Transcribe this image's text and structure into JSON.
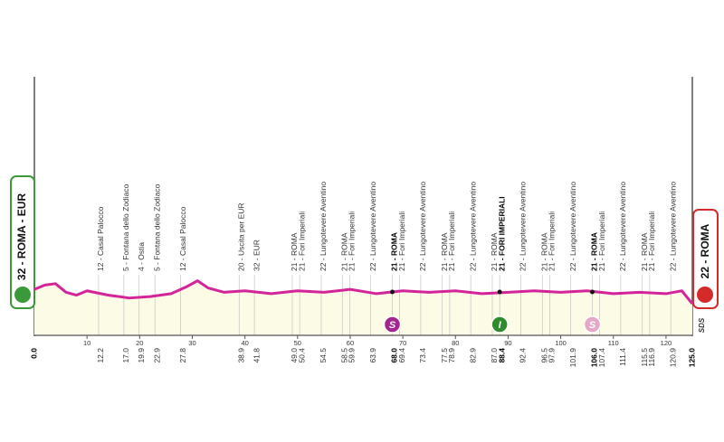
{
  "chart_data": {
    "type": "profile",
    "start_label": "32 - ROMA - EUR",
    "finish_label": "22 - ROMA",
    "logo": "SDS",
    "xlim": [
      0,
      125
    ],
    "ylim": [
      0,
      180
    ],
    "xticks": [
      10,
      20,
      30,
      40,
      50,
      60,
      70,
      80,
      90,
      100,
      110,
      120
    ],
    "start_km": {
      "value": 0,
      "label": "0.0"
    },
    "finish_km": {
      "value": 125,
      "label": "125.0"
    },
    "waypoints": [
      {
        "km": 12.2,
        "label": "12 - Casal Palocco"
      },
      {
        "km": {
          "value": 17,
          "label": "17.0"
        },
        "label": "5 - Fontana dello Zodiaco"
      },
      {
        "km": 19.9,
        "label": "4 - Ostia"
      },
      {
        "km": 22.9,
        "label": "5 - Fontana dello Zodiaco"
      },
      {
        "km": 27.8,
        "label": "12 - Casal Palocco"
      },
      {
        "km": 38.9,
        "label": "20 - Uscita per EUR"
      },
      {
        "km": 41.8,
        "label": "32 - EUR"
      },
      {
        "km": {
          "value": 49,
          "label": "49.0"
        },
        "label": "21 - ROMA"
      },
      {
        "km": 50.4,
        "label": "21 - Fori Imperiali"
      },
      {
        "km": 54.5,
        "label": "22 - Lungotevere Aventino"
      },
      {
        "km": 58.5,
        "label": "21 - ROMA"
      },
      {
        "km": 59.9,
        "label": "21 - Fori Imperiali"
      },
      {
        "km": 63.9,
        "label": "22 - Lungotevere Aventino"
      },
      {
        "km": {
          "value": 68,
          "label": "68.0"
        },
        "label": "21 - ROMA",
        "bold": true,
        "marker": "S",
        "marker_color": "#a3268f"
      },
      {
        "km": 69.4,
        "label": "21 - Fori Imperiali"
      },
      {
        "km": 73.4,
        "label": "22 - Lungotevere Aventino"
      },
      {
        "km": 77.5,
        "label": "21 - ROMA"
      },
      {
        "km": 78.9,
        "label": "21 - Fori Imperiali"
      },
      {
        "km": 82.9,
        "label": "22 - Lungotevere Aventino"
      },
      {
        "km": {
          "value": 87,
          "label": "87.0"
        },
        "label": "21 - ROMA"
      },
      {
        "km": 88.4,
        "label": "21 - FORI IMPERIALI",
        "bold": true,
        "marker": "I",
        "marker_color": "#2e8b2e"
      },
      {
        "km": 92.4,
        "label": "22 - Lungotevere Aventino"
      },
      {
        "km": 96.5,
        "label": "21 - ROMA"
      },
      {
        "km": 97.9,
        "label": "21 - Fori Imperiali"
      },
      {
        "km": 101.9,
        "label": "22 - Lungotevere Aventino"
      },
      {
        "km": {
          "value": 106,
          "label": "106.0"
        },
        "label": "21 - ROMA",
        "bold": true,
        "marker": "S",
        "marker_color": "#e6a6c6"
      },
      {
        "km": 107.4,
        "label": "21 - Fori Imperiali"
      },
      {
        "km": 111.4,
        "label": "22 - Lungotevere Aventino"
      },
      {
        "km": 115.5,
        "label": "21 - ROMA"
      },
      {
        "km": 116.9,
        "label": "21 - Fori Imperiali"
      },
      {
        "km": 120.9,
        "label": "22 - Lungotevere Aventino"
      }
    ],
    "profile": {
      "color": "#d4249a",
      "x": [
        0,
        2,
        4,
        6,
        8,
        10,
        14,
        18,
        22,
        26,
        29,
        31,
        33,
        36,
        40,
        45,
        50,
        55,
        60,
        65,
        70,
        75,
        80,
        85,
        90,
        95,
        100,
        105,
        110,
        115,
        120,
        123,
        125
      ],
      "values": [
        32,
        35,
        36,
        30,
        28,
        31,
        28,
        26,
        27,
        29,
        34,
        38,
        33,
        30,
        31,
        29,
        31,
        30,
        32,
        29,
        31,
        30,
        31,
        29,
        30,
        31,
        30,
        31,
        29,
        30,
        29,
        31,
        22
      ]
    }
  }
}
